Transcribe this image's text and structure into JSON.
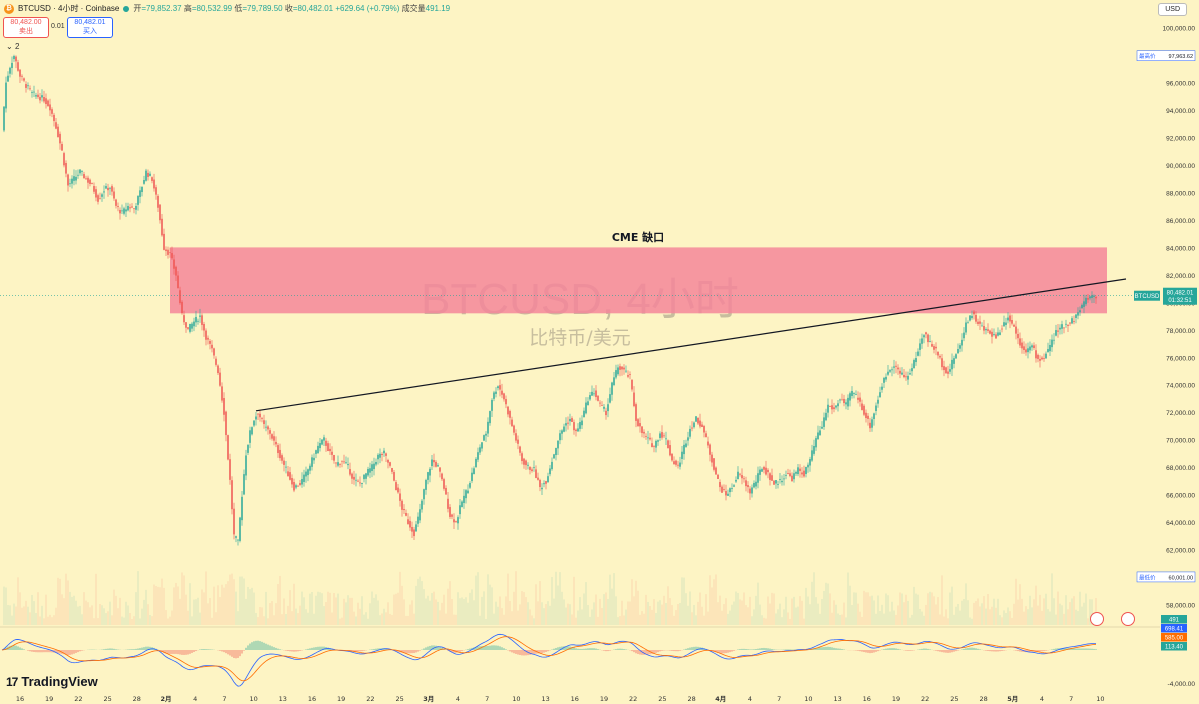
{
  "header": {
    "symbol": "BTCUSD · 4小时 · Coinbase",
    "open_label": "开",
    "open": "=79,852.37",
    "high_label": "高",
    "high": "=80,532.99",
    "low_label": "低",
    "low": "=79,789.50",
    "close_label": "收",
    "close": "=80,482.01",
    "change": "+629.64 (+0.79%)",
    "volume_label": "成交量",
    "volume": "491.19"
  },
  "trade": {
    "sell_price": "80,482.00",
    "sell_label": "卖出",
    "spread": "0.01",
    "buy_price": "80,482.01",
    "buy_label": "买入"
  },
  "indicator_count": "2",
  "currency": "USD",
  "watermark": {
    "title": "BTCUSD, 4小时",
    "subtitle": "比特币/美元"
  },
  "brand": "TradingView",
  "colors": {
    "up": "#26a69a",
    "down": "#ef5350",
    "gap_zone": "#f4869a",
    "background": "#fdf4c4"
  },
  "chart_data": {
    "type": "candlestick",
    "y_axis_labels": [
      "100,000.00",
      "98,000.00",
      "96,000.00",
      "94,000.00",
      "92,000.00",
      "90,000.00",
      "88,000.00",
      "86,000.00",
      "84,000.00",
      "82,000.00",
      "80,000.00",
      "78,000.00",
      "76,000.00",
      "74,000.00",
      "72,000.00",
      "70,000.00",
      "68,000.00",
      "66,000.00",
      "64,000.00",
      "62,000.00",
      "60,000.00",
      "58,000.00"
    ],
    "ylim": [
      56500,
      101000
    ],
    "x_axis_labels": [
      "16",
      "19",
      "22",
      "25",
      "28",
      "2月",
      "4",
      "7",
      "10",
      "13",
      "16",
      "19",
      "22",
      "25",
      "3月",
      "4",
      "7",
      "10",
      "13",
      "16",
      "19",
      "22",
      "25",
      "28",
      "4月",
      "4",
      "7",
      "10",
      "13",
      "16",
      "19",
      "22",
      "25",
      "28",
      "5月",
      "4",
      "7",
      "10"
    ],
    "price_path": [
      [
        0,
        92500
      ],
      [
        2,
        96000
      ],
      [
        4,
        97200
      ],
      [
        6,
        97963.62
      ],
      [
        9,
        96500
      ],
      [
        12,
        95800
      ],
      [
        15,
        95200
      ],
      [
        18,
        95000
      ],
      [
        21,
        94800
      ],
      [
        24,
        94200
      ],
      [
        27,
        92800
      ],
      [
        30,
        91000
      ],
      [
        33,
        88500
      ],
      [
        36,
        89000
      ],
      [
        39,
        89500
      ],
      [
        42,
        89000
      ],
      [
        45,
        88500
      ],
      [
        48,
        87500
      ],
      [
        51,
        88200
      ],
      [
        54,
        88400
      ],
      [
        57,
        87000
      ],
      [
        60,
        86500
      ],
      [
        63,
        87000
      ],
      [
        66,
        86800
      ],
      [
        69,
        88000
      ],
      [
        72,
        89500
      ],
      [
        75,
        89000
      ],
      [
        78,
        87000
      ],
      [
        81,
        84000
      ],
      [
        84,
        83500
      ],
      [
        87,
        82000
      ],
      [
        90,
        79000
      ],
      [
        93,
        78000
      ],
      [
        96,
        78600
      ],
      [
        99,
        79000
      ],
      [
        102,
        77500
      ],
      [
        105,
        76500
      ],
      [
        108,
        75000
      ],
      [
        111,
        72000
      ],
      [
        114,
        67000
      ],
      [
        116,
        63000
      ],
      [
        118,
        62500
      ],
      [
        120,
        66000
      ],
      [
        122,
        69000
      ],
      [
        124,
        70500
      ],
      [
        126,
        71500
      ],
      [
        128,
        72000
      ],
      [
        131,
        71000
      ],
      [
        134,
        70500
      ],
      [
        137,
        69500
      ],
      [
        140,
        68500
      ],
      [
        143,
        67500
      ],
      [
        146,
        66500
      ],
      [
        149,
        66800
      ],
      [
        152,
        67500
      ],
      [
        155,
        68500
      ],
      [
        158,
        69500
      ],
      [
        161,
        70000
      ],
      [
        164,
        69000
      ],
      [
        167,
        68200
      ],
      [
        170,
        68500
      ],
      [
        173,
        68000
      ],
      [
        176,
        67000
      ],
      [
        179,
        66800
      ],
      [
        182,
        67500
      ],
      [
        185,
        68000
      ],
      [
        188,
        68800
      ],
      [
        191,
        69000
      ],
      [
        194,
        68000
      ],
      [
        197,
        66500
      ],
      [
        200,
        65000
      ],
      [
        203,
        64000
      ],
      [
        206,
        63200
      ],
      [
        209,
        64800
      ],
      [
        212,
        67000
      ],
      [
        215,
        68500
      ],
      [
        218,
        68000
      ],
      [
        221,
        66500
      ],
      [
        224,
        64500
      ],
      [
        227,
        64000
      ],
      [
        230,
        65500
      ],
      [
        233,
        66500
      ],
      [
        236,
        68000
      ],
      [
        239,
        69500
      ],
      [
        242,
        70500
      ],
      [
        245,
        73000
      ],
      [
        248,
        74000
      ],
      [
        251,
        73000
      ],
      [
        254,
        71500
      ],
      [
        257,
        70000
      ],
      [
        260,
        68500
      ],
      [
        263,
        68000
      ],
      [
        266,
        67800
      ],
      [
        269,
        66500
      ],
      [
        272,
        67000
      ],
      [
        275,
        68500
      ],
      [
        278,
        70000
      ],
      [
        281,
        71000
      ],
      [
        284,
        71500
      ],
      [
        287,
        70500
      ],
      [
        290,
        71500
      ],
      [
        293,
        73000
      ],
      [
        296,
        73500
      ],
      [
        299,
        72500
      ],
      [
        302,
        72000
      ],
      [
        305,
        74000
      ],
      [
        308,
        75300
      ],
      [
        311,
        75000
      ],
      [
        314,
        74500
      ],
      [
        317,
        71500
      ],
      [
        320,
        70500
      ],
      [
        323,
        70000
      ],
      [
        326,
        69500
      ],
      [
        329,
        70500
      ],
      [
        332,
        70000
      ],
      [
        335,
        68500
      ],
      [
        338,
        68000
      ],
      [
        341,
        69500
      ],
      [
        344,
        70800
      ],
      [
        347,
        71500
      ],
      [
        350,
        71000
      ],
      [
        353,
        69500
      ],
      [
        356,
        68000
      ],
      [
        359,
        66500
      ],
      [
        362,
        66000
      ],
      [
        365,
        66500
      ],
      [
        368,
        67500
      ],
      [
        371,
        67000
      ],
      [
        374,
        66200
      ],
      [
        377,
        67000
      ],
      [
        380,
        68000
      ],
      [
        383,
        67500
      ],
      [
        386,
        66800
      ],
      [
        389,
        67000
      ],
      [
        392,
        67500
      ],
      [
        395,
        67200
      ],
      [
        398,
        67800
      ],
      [
        401,
        67500
      ],
      [
        404,
        68500
      ],
      [
        407,
        70000
      ],
      [
        410,
        71000
      ],
      [
        413,
        72500
      ],
      [
        416,
        72200
      ],
      [
        419,
        73000
      ],
      [
        422,
        72500
      ],
      [
        425,
        73500
      ],
      [
        428,
        73000
      ],
      [
        431,
        72000
      ],
      [
        434,
        71000
      ],
      [
        437,
        72500
      ],
      [
        440,
        74000
      ],
      [
        443,
        75000
      ],
      [
        446,
        75500
      ],
      [
        449,
        74800
      ],
      [
        452,
        74500
      ],
      [
        455,
        75200
      ],
      [
        458,
        76500
      ],
      [
        461,
        77800
      ],
      [
        464,
        77000
      ],
      [
        467,
        76500
      ],
      [
        470,
        75500
      ],
      [
        473,
        74800
      ],
      [
        476,
        76000
      ],
      [
        479,
        76800
      ],
      [
        482,
        78500
      ],
      [
        485,
        79200
      ],
      [
        488,
        78500
      ],
      [
        491,
        78000
      ],
      [
        494,
        77800
      ],
      [
        497,
        77500
      ],
      [
        500,
        78200
      ],
      [
        503,
        79000
      ],
      [
        506,
        78200
      ],
      [
        509,
        77000
      ],
      [
        512,
        76500
      ],
      [
        515,
        76800
      ],
      [
        518,
        75800
      ],
      [
        521,
        76000
      ],
      [
        524,
        76800
      ],
      [
        527,
        77800
      ],
      [
        530,
        78200
      ],
      [
        533,
        78500
      ],
      [
        536,
        78800
      ],
      [
        539,
        79500
      ],
      [
        542,
        80200
      ],
      [
        545,
        80500
      ],
      [
        547,
        80482.01
      ]
    ],
    "annotations": {
      "gap_label": "CME  缺口",
      "gap_zone": [
        79200,
        84000
      ],
      "trendline": [
        [
          127,
          72100
        ],
        [
          562,
          81700
        ]
      ],
      "last_price": "80,482.01",
      "countdown": "01:32:51",
      "last_price_ticker": "BTCUSD",
      "high_label": "最高价",
      "high_value": "97,963.62",
      "low_label": "最低价",
      "low_value": "60,001.00"
    },
    "indicator": {
      "name": "MACD",
      "ylim": [
        -5000,
        2500
      ],
      "y_axis_labels": [
        "-4,000.00"
      ],
      "values_labels": [
        "698.41",
        "585.00",
        "113.40"
      ],
      "volume_label": "491"
    }
  }
}
